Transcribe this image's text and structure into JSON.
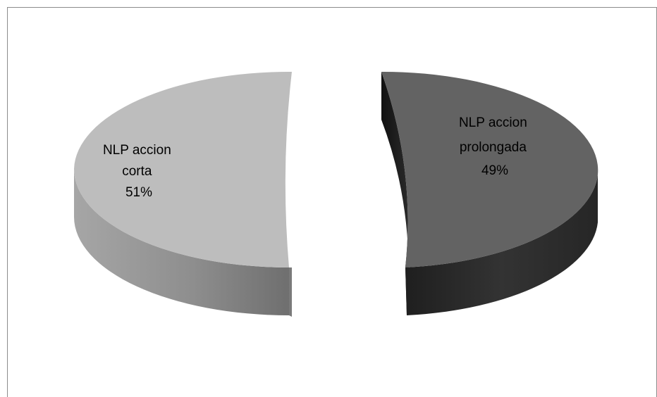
{
  "chart_data": {
    "type": "pie",
    "style": "3d-exploded",
    "slices": [
      {
        "name": "NLP accion corta",
        "label_lines": [
          "NLP accion",
          "corta",
          "51%"
        ],
        "percent": 51,
        "value": 0.51,
        "color": "#bdbdbd",
        "side_color": "#9a9a9a"
      },
      {
        "name": "NLP accion prolongada",
        "label_lines": [
          "NLP accion",
          "prolongada",
          "49%"
        ],
        "percent": 49,
        "value": 0.49,
        "color": "#636363",
        "side_color": "#2e2e2e"
      }
    ],
    "legend": "none"
  }
}
